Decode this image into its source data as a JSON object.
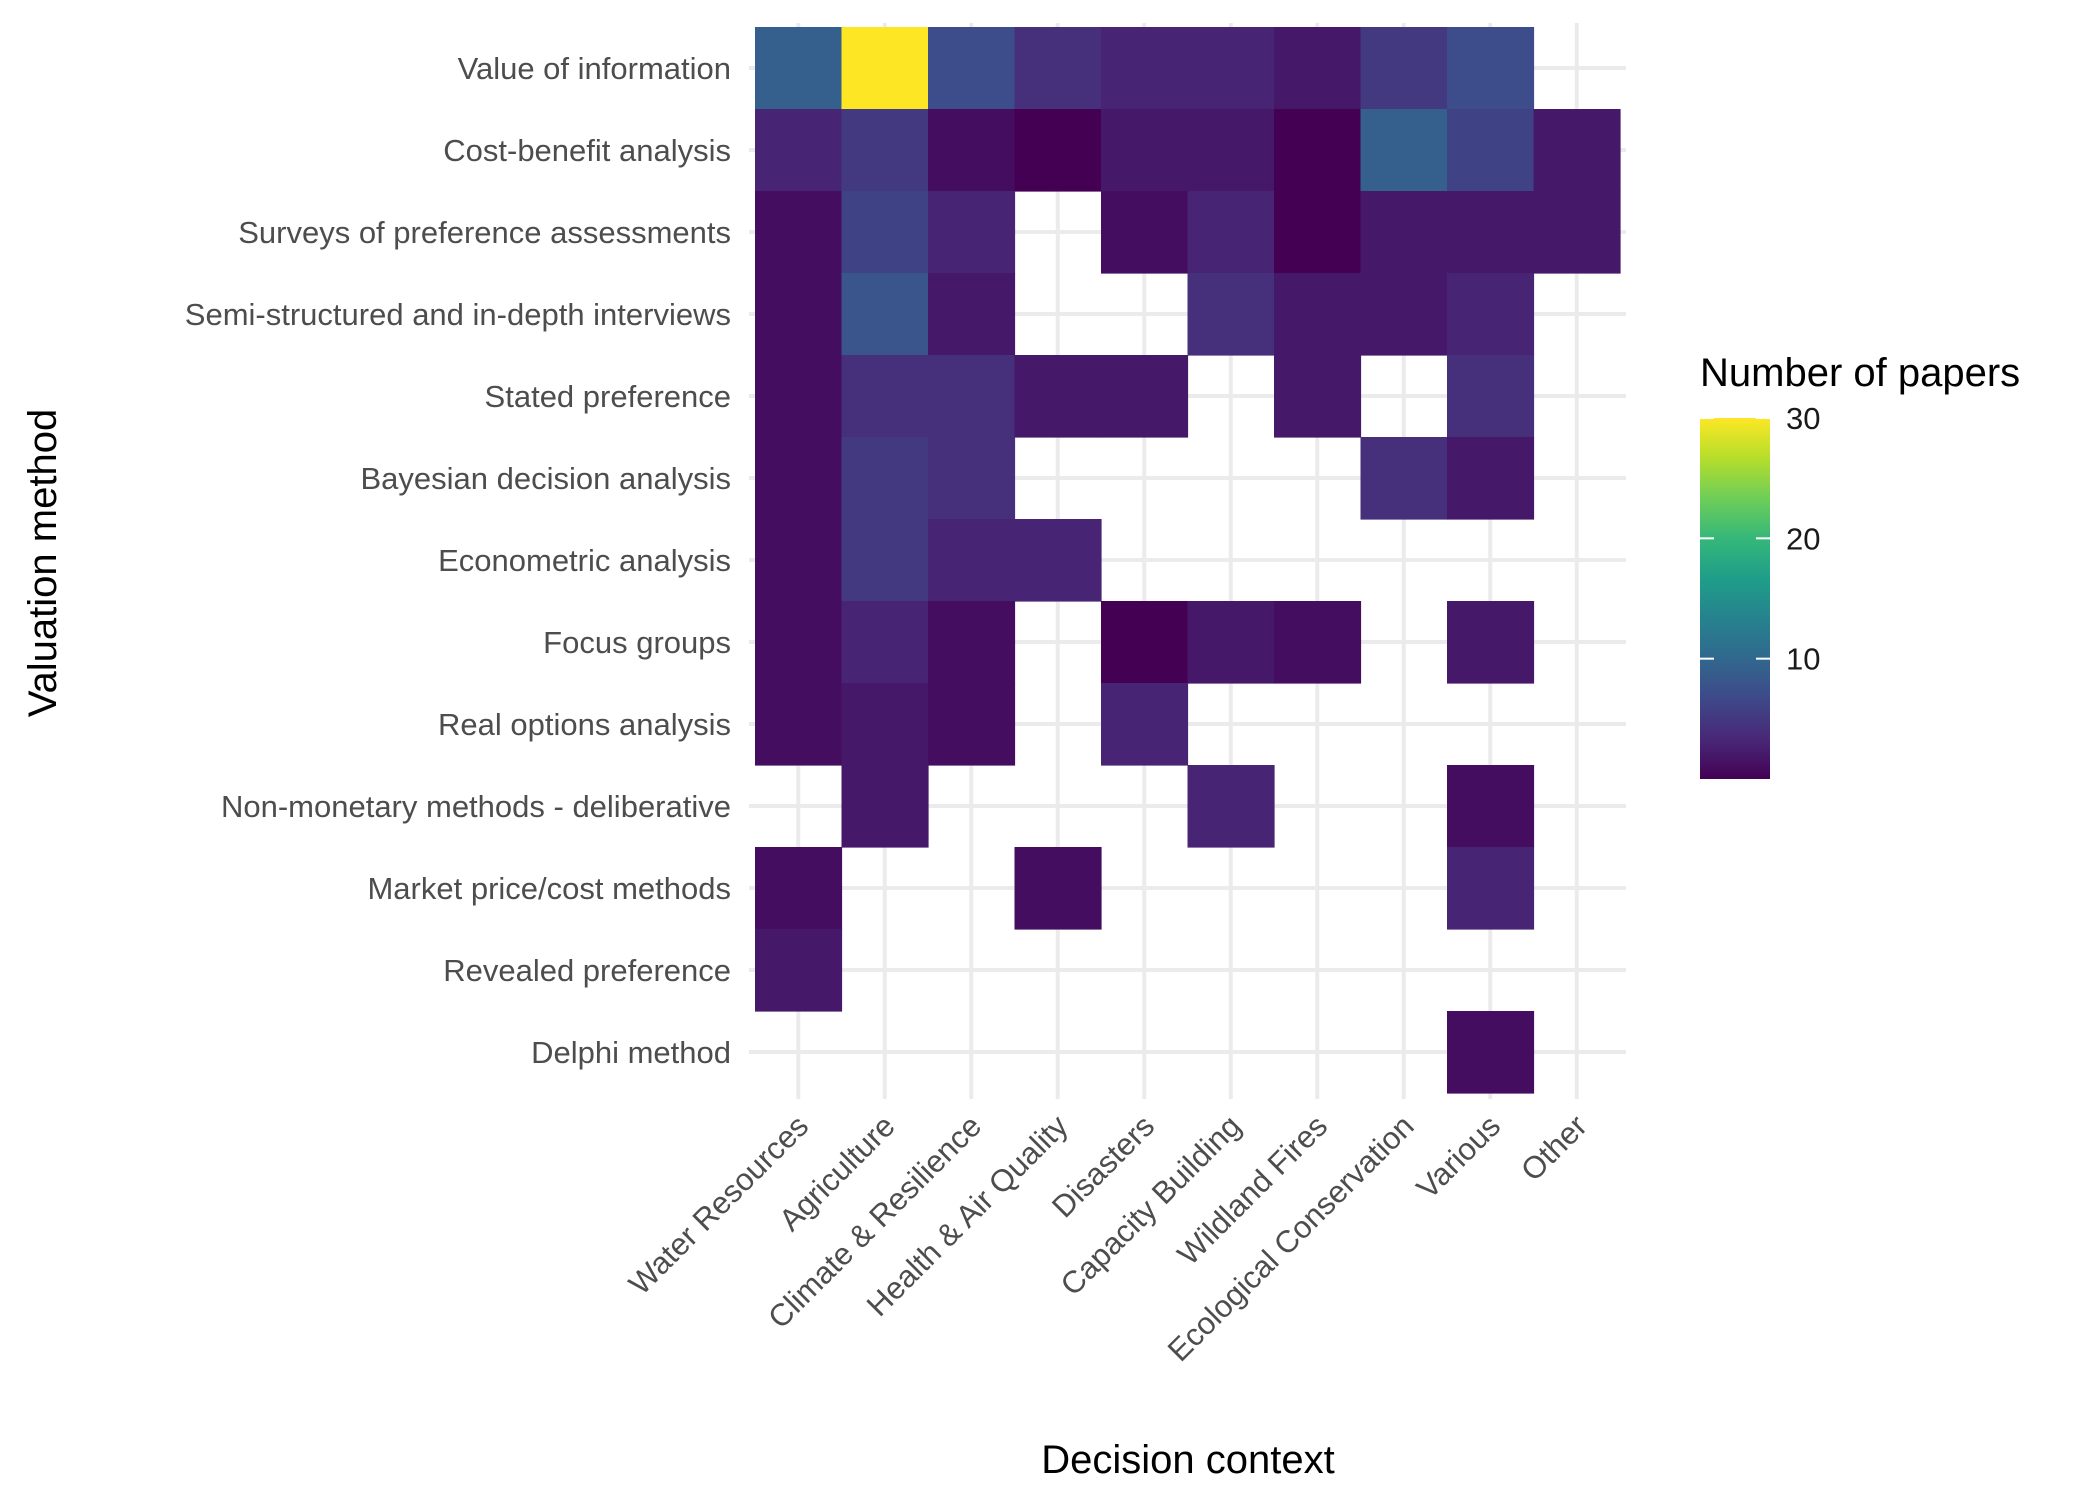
{
  "chart_data": {
    "type": "heatmap",
    "xlabel": "Decision context",
    "ylabel": "Valuation method",
    "x_categories": [
      "Water Resources",
      "Agriculture",
      "Climate & Resilience",
      "Health & Air Quality",
      "Disasters",
      "Capacity Building",
      "Wildland Fires",
      "Ecological Conservation",
      "Various",
      "Other"
    ],
    "y_categories": [
      "Value of information",
      "Cost-benefit analysis",
      "Surveys of preference assessments",
      "Semi-structured and in-depth interviews",
      "Stated preference",
      "Bayesian decision analysis",
      "Econometric analysis",
      "Focus groups",
      "Real options analysis",
      "Non-monetary methods - deliberative",
      "Market price/cost methods",
      "Revealed preference",
      "Delphi method"
    ],
    "values": [
      [
        9,
        30,
        7,
        4,
        3,
        3,
        2,
        5,
        7,
        null
      ],
      [
        3,
        5,
        1,
        0,
        2,
        2,
        0,
        9,
        6,
        2
      ],
      [
        1,
        6,
        3,
        null,
        1,
        3,
        0,
        2,
        2,
        2
      ],
      [
        1,
        8,
        2,
        null,
        null,
        4,
        2,
        2,
        3,
        null
      ],
      [
        1,
        4,
        4,
        2,
        2,
        null,
        2,
        null,
        4,
        null
      ],
      [
        1,
        5,
        4,
        null,
        null,
        null,
        null,
        4,
        2,
        null
      ],
      [
        1,
        5,
        3,
        3,
        null,
        null,
        null,
        null,
        null,
        null
      ],
      [
        1,
        3,
        1,
        null,
        0,
        2,
        1,
        null,
        2,
        null
      ],
      [
        1,
        2,
        1,
        null,
        3,
        null,
        null,
        null,
        null,
        null
      ],
      [
        null,
        2,
        null,
        null,
        null,
        3,
        null,
        null,
        1,
        null
      ],
      [
        1,
        null,
        null,
        1,
        null,
        null,
        null,
        null,
        3,
        null
      ],
      [
        2,
        null,
        null,
        null,
        null,
        null,
        null,
        null,
        null,
        null
      ],
      [
        null,
        null,
        null,
        null,
        null,
        null,
        null,
        null,
        1,
        null
      ]
    ],
    "legend": {
      "title": "Number of papers",
      "ticks": [
        10,
        20,
        30
      ],
      "range": [
        0,
        30
      ],
      "palette": "viridis",
      "colors": [
        "#440154",
        "#482878",
        "#3e4989",
        "#31688e",
        "#26828e",
        "#1f9e89",
        "#35b779",
        "#6ece58",
        "#b5de2b",
        "#fde725"
      ],
      "placement": "right"
    },
    "grid": true,
    "background": "#ffffff",
    "grid_color": "#ebebeb"
  }
}
